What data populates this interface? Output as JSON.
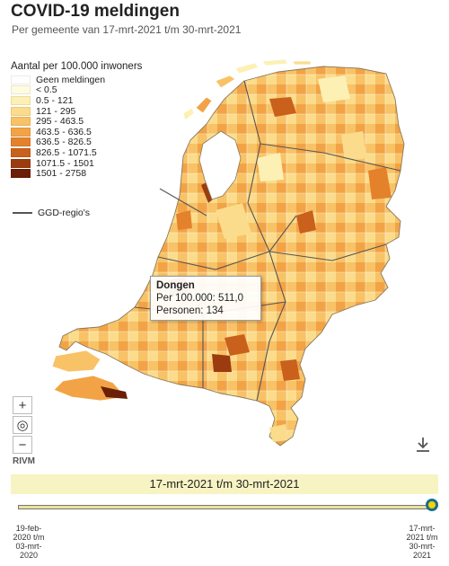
{
  "header": {
    "title": "COVID-19 meldingen",
    "subtitle": "Per gemeente van 17-mrt-2021 t/m 30-mrt-2021"
  },
  "legend": {
    "title": "Aantal per 100.000 inwoners",
    "items": [
      {
        "label": "Geen meldingen",
        "color": "#ffffff"
      },
      {
        "label": "< 0.5",
        "color": "#fffbe0"
      },
      {
        "label": "0.5 - 121",
        "color": "#fdf0b4"
      },
      {
        "label": "121 - 295",
        "color": "#fbdc8c"
      },
      {
        "label": "295 - 463.5",
        "color": "#f8c266"
      },
      {
        "label": "463.5 - 636.5",
        "color": "#f2a346"
      },
      {
        "label": "636.5 - 826.5",
        "color": "#e4822c"
      },
      {
        "label": "826.5 - 1071.5",
        "color": "#c9601c"
      },
      {
        "label": "1071.5 - 1501",
        "color": "#9b3c10"
      },
      {
        "label": "1501 - 2758",
        "color": "#6a1f06"
      }
    ],
    "region_line_label": "GGD-regio's"
  },
  "tooltip": {
    "name": "Dongen",
    "rate_line": "Per 100.000: 511,0",
    "persons_line": "Personen: 134"
  },
  "controls": {
    "zoom_in": "+",
    "reset": "◎",
    "zoom_out": "−",
    "download_icon": "download-icon"
  },
  "attribution": "RIVM",
  "timeline": {
    "period_label": "17-mrt-2021 t/m 30-mrt-2021",
    "start_label": "19-feb-\n2020 t/m\n03-mrt-\n2020",
    "end_label": "17-mrt-\n2021 t/m\n30-mrt-\n2021",
    "position_fraction": 1.0
  }
}
